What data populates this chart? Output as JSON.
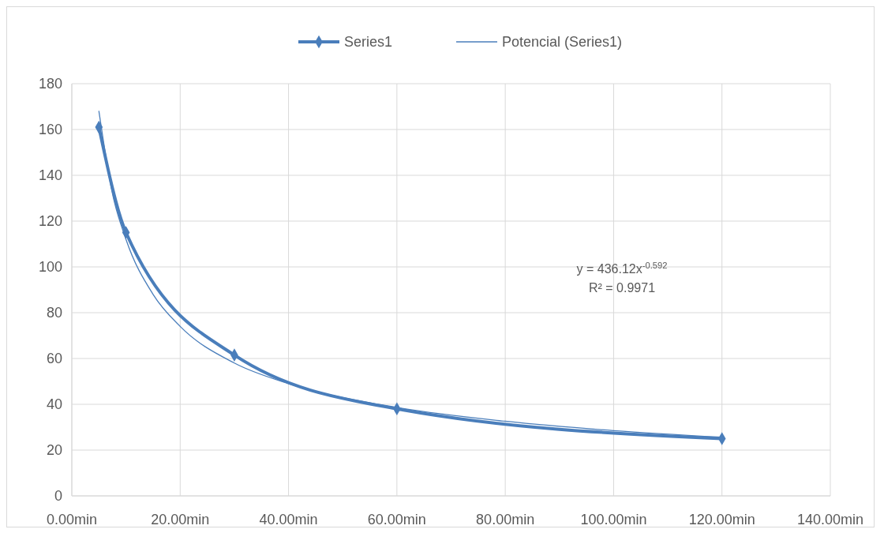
{
  "chart_data": {
    "type": "line",
    "xlim": [
      0,
      140
    ],
    "ylim": [
      0,
      180
    ],
    "xticks": [
      {
        "value": 0,
        "label": "0.00min"
      },
      {
        "value": 20,
        "label": "20.00min"
      },
      {
        "value": 40,
        "label": "40.00min"
      },
      {
        "value": 60,
        "label": "60.00min"
      },
      {
        "value": 80,
        "label": "80.00min"
      },
      {
        "value": 100,
        "label": "100.00min"
      },
      {
        "value": 120,
        "label": "120.00min"
      },
      {
        "value": 140,
        "label": "140.00min"
      }
    ],
    "yticks": [
      0,
      20,
      40,
      60,
      80,
      100,
      120,
      140,
      160,
      180
    ],
    "grid": true,
    "legend": "top",
    "series": [
      {
        "name": "Series1",
        "color": "#4a7ebb",
        "marker": "diamond",
        "x": [
          5,
          10,
          30,
          60,
          120
        ],
        "values": [
          161,
          115,
          61.5,
          38,
          25
        ]
      },
      {
        "name": "Potencial (Series1)",
        "color": "#4a7ebb",
        "marker": "none",
        "x": [
          5,
          7.5,
          10,
          15,
          20,
          30,
          40,
          60,
          80,
          100,
          120
        ],
        "values": [
          168,
          132,
          112,
          88,
          74,
          58,
          49,
          38.6,
          32.6,
          28.5,
          25.6
        ]
      }
    ],
    "annotations": [
      "y = 436.12x$^{-0.592}$",
      "R² = 0.9971"
    ]
  }
}
